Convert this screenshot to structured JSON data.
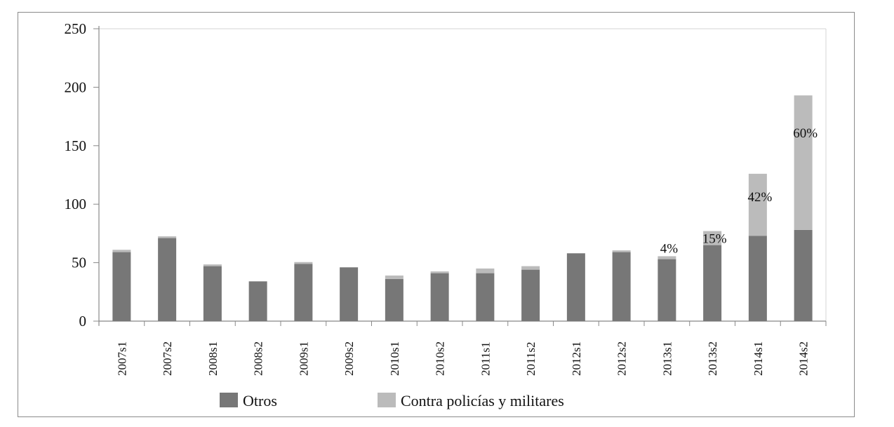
{
  "chart_data": {
    "type": "bar",
    "stacked": true,
    "title": "",
    "xlabel": "",
    "ylabel": "",
    "ylim": [
      0,
      250
    ],
    "yticks": [
      0,
      50,
      100,
      150,
      200,
      250
    ],
    "grid": false,
    "legend_position": "bottom",
    "categories": [
      "2007s1",
      "2007s2",
      "2008s1",
      "2008s2",
      "2009s1",
      "2009s2",
      "2010s1",
      "2010s2",
      "2011s1",
      "2011s2",
      "2012s1",
      "2012s2",
      "2013s1",
      "2013s2",
      "2014s1",
      "2014s2"
    ],
    "series": [
      {
        "name": "Otros",
        "color": "#777777",
        "values": [
          59,
          71,
          47,
          34,
          49,
          46,
          36,
          41,
          41,
          44,
          58,
          59,
          53,
          65,
          73,
          78
        ]
      },
      {
        "name": "Contra policías y militares",
        "color": "#bbbbbb",
        "values": [
          2,
          1.5,
          1.5,
          0,
          1.5,
          0,
          3,
          1.5,
          4,
          3,
          0,
          1.5,
          2.5,
          12,
          53,
          115
        ]
      }
    ],
    "annotations": [
      {
        "category": "2013s1",
        "text": "4%"
      },
      {
        "category": "2013s2",
        "text": "15%"
      },
      {
        "category": "2014s1",
        "text": "42%"
      },
      {
        "category": "2014s2",
        "text": "60%"
      }
    ]
  }
}
